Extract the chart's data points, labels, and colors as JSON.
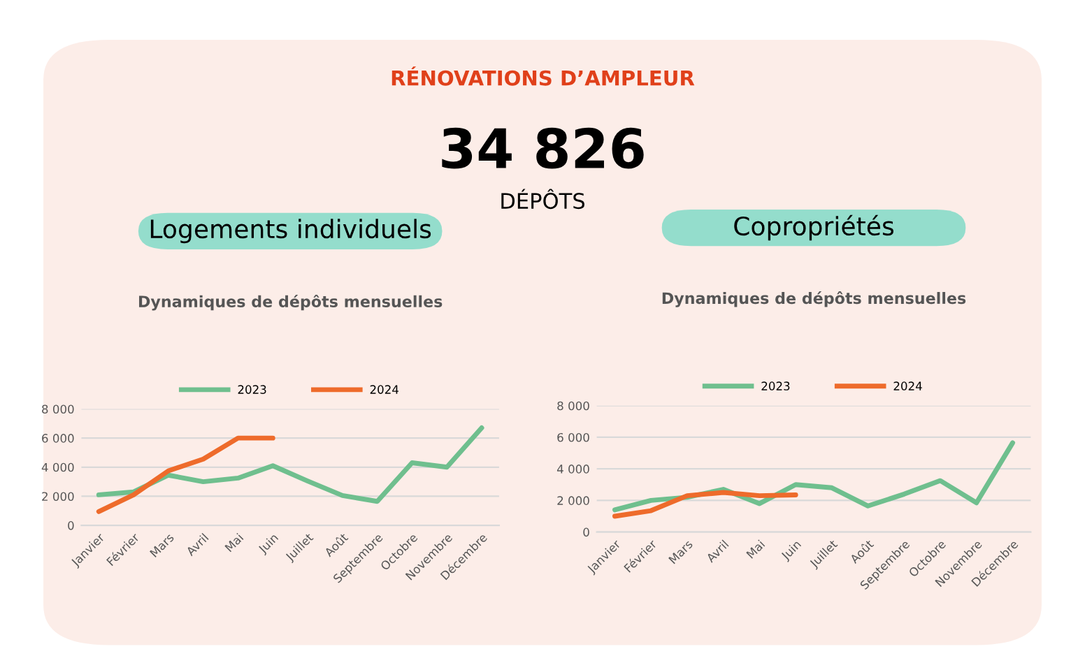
{
  "chart_data": [
    {
      "type": "other",
      "title": "RÉNOVATIONS D’AMPLEUR",
      "annotations": [
        "34 826",
        "DÉPÔTS"
      ]
    },
    {
      "type": "line",
      "title": "Logements individuels",
      "subtitle": "Dynamiques de dépôts mensuelles",
      "categories": [
        "Janvier",
        "Février",
        "Mars",
        "Avril",
        "Mai",
        "Juin",
        "Juillet",
        "Août",
        "Septembre",
        "Octobre",
        "Novembre",
        "Décembre"
      ],
      "series": [
        {
          "name": "2023",
          "color": "#6fbf8e",
          "values": [
            2100,
            2300,
            3450,
            3000,
            3250,
            4100,
            3050,
            2050,
            1650,
            4300,
            4000,
            6700
          ]
        },
        {
          "name": "2024",
          "color": "#ee6b2b",
          "values": [
            950,
            2100,
            3750,
            4550,
            6000,
            6000,
            null,
            null,
            null,
            null,
            null,
            null
          ]
        }
      ],
      "ylim": [
        0,
        8000
      ],
      "yticks": [
        0,
        {
          "value": 2000,
          "label": "2 000"
        },
        {
          "value": 4000,
          "label": "4 000"
        },
        {
          "value": 6000,
          "label": "6 000"
        },
        {
          "value": 8000,
          "label": "8 000"
        }
      ],
      "grid": "y",
      "legend": "top",
      "marker": "none",
      "line_style": "solid"
    },
    {
      "type": "line",
      "title": "Copropriétés",
      "subtitle": "Dynamiques de dépôts mensuelles",
      "categories": [
        "Janvier",
        "Février",
        "Mars",
        "Avril",
        "Mai",
        "Juin",
        "Juillet",
        "Août",
        "Septembre",
        "Octobre",
        "Novembre",
        "Décembre"
      ],
      "series": [
        {
          "name": "2023",
          "color": "#6fbf8e",
          "values": [
            1400,
            2000,
            2200,
            2700,
            1800,
            3000,
            2800,
            1650,
            2400,
            3250,
            1850,
            5650
          ]
        },
        {
          "name": "2024",
          "color": "#ee6b2b",
          "values": [
            1000,
            1350,
            2300,
            2500,
            2300,
            2350,
            null,
            null,
            null,
            null,
            null,
            null
          ]
        }
      ],
      "ylim": [
        0,
        8000
      ],
      "yticks": [
        0,
        {
          "value": 2000,
          "label": "2 000"
        },
        {
          "value": 4000,
          "label": "4 000"
        },
        {
          "value": 6000,
          "label": "6 000"
        },
        {
          "value": 8000,
          "label": "8 000"
        }
      ],
      "grid": "y",
      "legend": "top",
      "marker": "none",
      "line_style": "solid"
    }
  ]
}
